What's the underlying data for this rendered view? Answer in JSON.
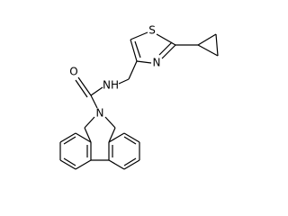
{
  "atoms": [
    {
      "label": "S"
    },
    {
      "label": "N"
    },
    {
      "label": "NH"
    },
    {
      "label": "O"
    },
    {
      "label": "N"
    }
  ]
}
